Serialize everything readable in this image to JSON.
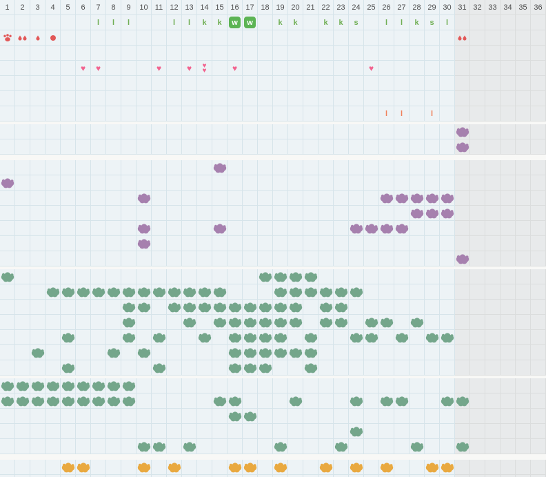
{
  "grid": {
    "columns": 36,
    "active_columns": 30,
    "cell_size": 22,
    "col_headers": [
      "1",
      "2",
      "3",
      "4",
      "5",
      "6",
      "7",
      "8",
      "9",
      "10",
      "11",
      "12",
      "13",
      "14",
      "15",
      "16",
      "17",
      "18",
      "19",
      "20",
      "21",
      "22",
      "23",
      "24",
      "25",
      "26",
      "27",
      "28",
      "29",
      "30",
      "31",
      "32",
      "33",
      "34",
      "35",
      "36"
    ]
  },
  "glyphs": {
    "heart": "♥",
    "bar": "l"
  },
  "colors": {
    "cell_bg": "#edf3f6",
    "cell_bg_inactive": "#e8eaeb",
    "grid_line": "#d6e4ea",
    "grid_line_inactive": "#dbdddd",
    "divider": "#f8f8f6",
    "header_text": "#4d4d4d",
    "letter_green": "#6fae53",
    "chip_green": "#5cb454",
    "heart_pink": "#f2638f",
    "mark_red": "#e25858",
    "mark_orange": "#f0815b",
    "blob_purple": "#a680ae",
    "blob_green": "#74a68b",
    "blob_orange": "#e9a940"
  },
  "sections": [
    {
      "name": "calendar",
      "rows": [
        {
          "type": "header"
        },
        {
          "type": "marks",
          "marks": [
            {
              "col": 7,
              "type": "letter",
              "value": "l"
            },
            {
              "col": 8,
              "type": "letter",
              "value": "l"
            },
            {
              "col": 9,
              "type": "letter",
              "value": "l"
            },
            {
              "col": 12,
              "type": "letter",
              "value": "l"
            },
            {
              "col": 13,
              "type": "letter",
              "value": "l"
            },
            {
              "col": 14,
              "type": "letter",
              "value": "k"
            },
            {
              "col": 15,
              "type": "letter",
              "value": "k"
            },
            {
              "col": 16,
              "type": "chip",
              "value": "w"
            },
            {
              "col": 17,
              "type": "chip",
              "value": "w"
            },
            {
              "col": 19,
              "type": "letter",
              "value": "k"
            },
            {
              "col": 20,
              "type": "letter",
              "value": "k"
            },
            {
              "col": 22,
              "type": "letter",
              "value": "k"
            },
            {
              "col": 23,
              "type": "letter",
              "value": "k"
            },
            {
              "col": 24,
              "type": "letter",
              "value": "s"
            },
            {
              "col": 26,
              "type": "letter",
              "value": "l"
            },
            {
              "col": 27,
              "type": "letter",
              "value": "l"
            },
            {
              "col": 28,
              "type": "letter",
              "value": "k"
            },
            {
              "col": 29,
              "type": "letter",
              "value": "s"
            },
            {
              "col": 30,
              "type": "letter",
              "value": "l"
            }
          ]
        },
        {
          "type": "marks",
          "marks": [
            {
              "col": 1,
              "type": "paw"
            },
            {
              "col": 2,
              "type": "drops2"
            },
            {
              "col": 3,
              "type": "drop"
            },
            {
              "col": 4,
              "type": "dot"
            },
            {
              "col": 31,
              "type": "drops2"
            }
          ]
        },
        {
          "type": "marks",
          "marks": []
        },
        {
          "type": "marks",
          "marks": [
            {
              "col": 6,
              "type": "heart"
            },
            {
              "col": 7,
              "type": "heart"
            },
            {
              "col": 11,
              "type": "heart"
            },
            {
              "col": 13,
              "type": "heart"
            },
            {
              "col": 14,
              "type": "heart2"
            },
            {
              "col": 16,
              "type": "heart"
            },
            {
              "col": 25,
              "type": "heart"
            }
          ]
        },
        {
          "type": "marks",
          "marks": []
        },
        {
          "type": "marks",
          "marks": []
        },
        {
          "type": "marks",
          "marks": [
            {
              "col": 26,
              "type": "bar"
            },
            {
              "col": 27,
              "type": "bar"
            },
            {
              "col": 29,
              "type": "bar"
            }
          ]
        }
      ],
      "gap_after": 4
    },
    {
      "name": "pen-1",
      "blob": "purple",
      "rows": [
        {
          "cols": [
            31
          ]
        },
        {
          "cols": [
            31
          ]
        }
      ],
      "gap_after": 8
    },
    {
      "name": "pen-2",
      "blob": "purple",
      "rows": [
        {
          "cols": [
            15
          ]
        },
        {
          "cols": [
            1
          ]
        },
        {
          "cols": [
            10,
            26,
            27,
            28,
            29,
            30
          ]
        },
        {
          "cols": [
            28,
            29,
            30
          ]
        },
        {
          "cols": [
            10,
            15,
            24,
            25,
            26,
            27
          ]
        },
        {
          "cols": [
            10
          ]
        },
        {
          "cols": [
            31
          ]
        }
      ],
      "gap_after": 4
    },
    {
      "name": "pen-3",
      "blob": "green",
      "rows": [
        {
          "cols": [
            1,
            18,
            19,
            20,
            21
          ]
        },
        {
          "cols": [
            4,
            5,
            6,
            7,
            8,
            9,
            10,
            11,
            12,
            13,
            14,
            15,
            19,
            20,
            21,
            22,
            23,
            24
          ]
        },
        {
          "cols": [
            9,
            10,
            12,
            13,
            14,
            15,
            16,
            17,
            18,
            19,
            20,
            22,
            23
          ]
        },
        {
          "cols": [
            9,
            13,
            15,
            16,
            17,
            18,
            19,
            20,
            22,
            23,
            25,
            26,
            28
          ]
        },
        {
          "cols": [
            5,
            9,
            11,
            14,
            16,
            17,
            18,
            19,
            21,
            24,
            25,
            27,
            29,
            30
          ]
        },
        {
          "cols": [
            3,
            8,
            10,
            16,
            17,
            18,
            19,
            20,
            21
          ]
        },
        {
          "cols": [
            5,
            11,
            16,
            17,
            18,
            21
          ]
        }
      ],
      "gap_after": 4
    },
    {
      "name": "pen-4",
      "blob": "green",
      "rows": [
        {
          "cols": [
            1,
            2,
            3,
            4,
            5,
            6,
            7,
            8,
            9
          ]
        },
        {
          "cols": [
            1,
            2,
            3,
            4,
            5,
            6,
            7,
            8,
            9,
            15,
            16,
            20,
            24,
            26,
            27,
            30,
            31
          ]
        },
        {
          "cols": [
            16,
            17
          ]
        },
        {
          "cols": [
            24
          ]
        },
        {
          "cols": [
            10,
            11,
            13,
            19,
            23,
            28,
            31
          ]
        }
      ],
      "gap_after": 8
    },
    {
      "name": "pen-5",
      "blob": "orange",
      "rows": [
        {
          "cols": [
            5,
            6,
            10,
            12,
            16,
            17,
            19,
            22,
            24,
            26,
            29,
            30
          ]
        },
        {
          "cols": []
        }
      ],
      "gap_after": 0
    }
  ]
}
